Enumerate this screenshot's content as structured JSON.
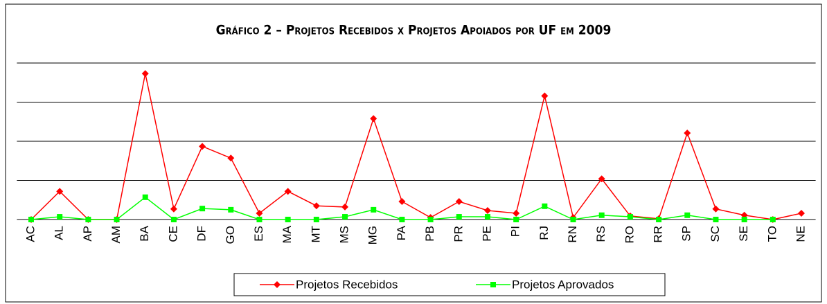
{
  "chart_data": {
    "type": "line",
    "title": "Gráfico 2 – Projetos  Recebidos x Projetos Apoiados por UF em 2009",
    "categories": [
      "AC",
      "AL",
      "AP",
      "AM",
      "BA",
      "CE",
      "DF",
      "GO",
      "ES",
      "MA",
      "MT",
      "MS",
      "MG",
      "PA",
      "PB",
      "PR",
      "PE",
      "PI",
      "RJ",
      "RN",
      "RS",
      "RO",
      "RR",
      "SP",
      "SC",
      "SE",
      "TO",
      "NE"
    ],
    "series": [
      {
        "name": "Projetos Recebidos",
        "color": "#ff0000",
        "marker": "diamond",
        "values": [
          0,
          7.2,
          0,
          0,
          37.3,
          2.7,
          18.7,
          15.7,
          1.6,
          7.2,
          3.5,
          3.2,
          25.8,
          4.6,
          0.5,
          4.6,
          2.3,
          1.6,
          31.6,
          0.5,
          10.4,
          0.9,
          0.2,
          22.1,
          2.7,
          1.1,
          0,
          1.6
        ]
      },
      {
        "name": "Projetos Aprovados",
        "color": "#00ff00",
        "marker": "square",
        "values": [
          0,
          0.7,
          0,
          0,
          5.7,
          0,
          2.8,
          2.5,
          0,
          0,
          0,
          0.7,
          2.5,
          0,
          0,
          0.7,
          0.7,
          0,
          3.4,
          0,
          1.1,
          0.7,
          0,
          1.1,
          0,
          0,
          0,
          null
        ]
      }
    ],
    "ylim": [
      0,
      40
    ],
    "yticks": [
      0,
      10,
      20,
      30,
      40
    ],
    "grid": true
  }
}
